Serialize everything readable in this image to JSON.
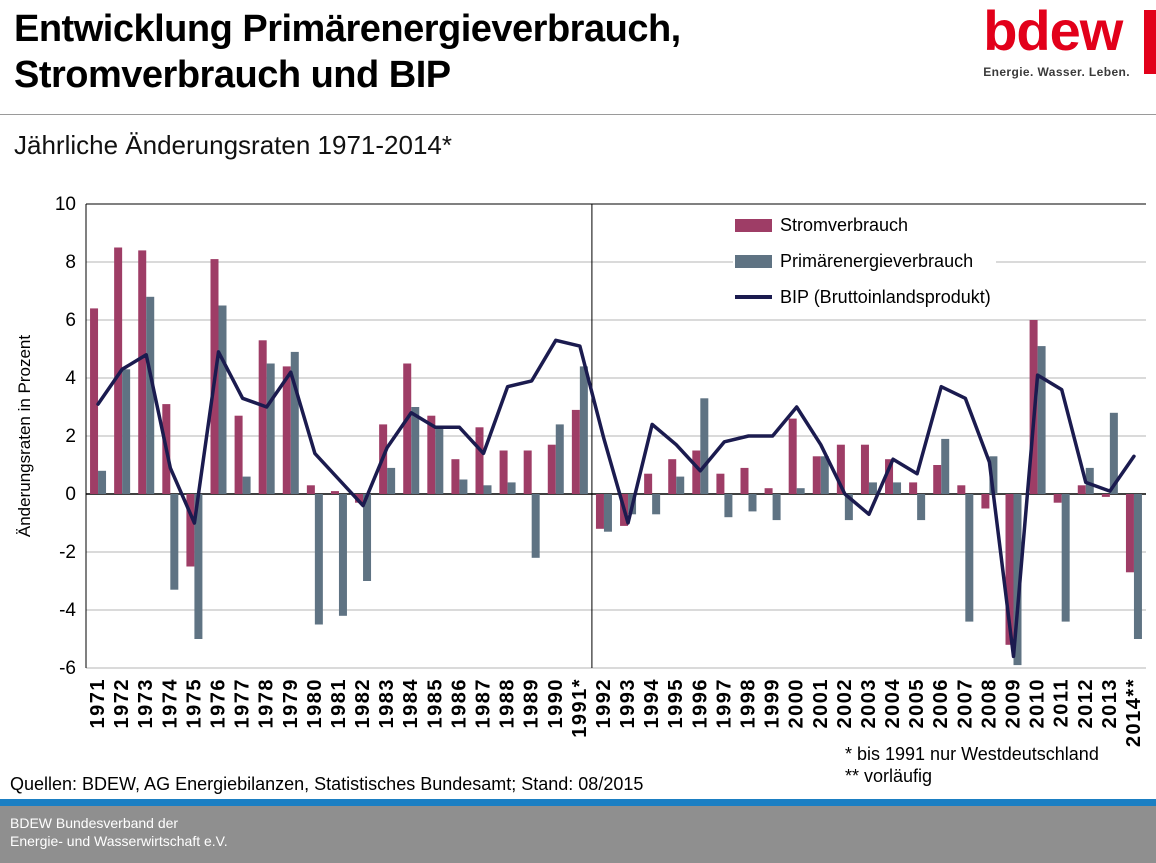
{
  "header": {
    "title": "Entwicklung Primärenergieverbrauch,\nStromverbrauch und BIP",
    "logo": {
      "wordmark": "bdew",
      "tagline": "Energie. Wasser. Leben."
    }
  },
  "chart_data": {
    "type": "bar",
    "title": "Jährliche Änderungsraten 1971-2014*",
    "ylabel": "Änderungsraten in Prozent",
    "xlabel": "",
    "ylim": [
      -6,
      10
    ],
    "ytick_step": 2,
    "grid": true,
    "legend_position": "top-right-inside",
    "separator_after_category": "1991*",
    "categories": [
      "1971",
      "1972",
      "1973",
      "1974",
      "1975",
      "1976",
      "1977",
      "1978",
      "1979",
      "1980",
      "1981",
      "1982",
      "1983",
      "1984",
      "1985",
      "1986",
      "1987",
      "1988",
      "1989",
      "1990",
      "1991*",
      "1992",
      "1993",
      "1994",
      "1995",
      "1996",
      "1997",
      "1998",
      "1999",
      "2000",
      "2001",
      "2002",
      "2003",
      "2004",
      "2005",
      "2006",
      "2007",
      "2008",
      "2009",
      "2010",
      "2011",
      "2012",
      "2013",
      "2014**"
    ],
    "series": [
      {
        "name": "Stromverbrauch",
        "type": "bar",
        "color": "#9e3d66",
        "values": [
          6.4,
          8.5,
          8.4,
          3.1,
          -2.5,
          8.1,
          2.7,
          5.3,
          4.4,
          0.3,
          0.1,
          -0.3,
          2.4,
          4.5,
          2.7,
          1.2,
          2.3,
          1.5,
          1.5,
          1.7,
          2.9,
          -1.2,
          -1.1,
          0.7,
          1.2,
          1.5,
          0.7,
          0.9,
          0.2,
          2.6,
          1.3,
          1.7,
          1.7,
          1.2,
          0.4,
          1.0,
          0.3,
          -0.5,
          -5.2,
          6.0,
          -0.3,
          0.3,
          -0.1,
          -2.7
        ]
      },
      {
        "name": "Primärenergieverbrauch",
        "type": "bar",
        "color": "#5f7383",
        "values": [
          0.8,
          4.3,
          6.8,
          -3.3,
          -5.0,
          6.5,
          0.6,
          4.5,
          4.9,
          -4.5,
          -4.2,
          -3.0,
          0.9,
          3.0,
          2.3,
          0.5,
          0.3,
          0.4,
          -2.2,
          2.4,
          4.4,
          -1.3,
          -0.7,
          -0.7,
          0.6,
          3.3,
          -0.8,
          -0.6,
          -0.9,
          0.2,
          1.3,
          -0.9,
          0.4,
          0.4,
          -0.9,
          1.9,
          -4.4,
          1.3,
          -5.9,
          5.1,
          -4.4,
          0.9,
          2.8,
          -5.0
        ]
      },
      {
        "name": "BIP (Bruttoinlandsprodukt)",
        "type": "line",
        "color": "#1b1b4f",
        "values": [
          3.1,
          4.3,
          4.8,
          0.9,
          -1.0,
          4.9,
          3.3,
          3.0,
          4.2,
          1.4,
          0.5,
          -0.4,
          1.6,
          2.8,
          2.3,
          2.3,
          1.4,
          3.7,
          3.9,
          5.3,
          5.1,
          1.9,
          -1.0,
          2.4,
          1.7,
          0.8,
          1.8,
          2.0,
          2.0,
          3.0,
          1.7,
          0.0,
          -0.7,
          1.2,
          0.7,
          3.7,
          3.3,
          1.1,
          -5.6,
          4.1,
          3.6,
          0.4,
          0.1,
          1.3
        ]
      }
    ]
  },
  "footer": {
    "source": "Quellen: BDEW, AG Energiebilanzen, Statistisches Bundesamt; Stand: 08/2015",
    "notes": "* bis 1991 nur Westdeutschland\n** vorläufig",
    "organization": "BDEW Bundesverband der\nEnergie- und Wasserwirtschaft e.V."
  },
  "colors": {
    "logo_red": "#e2001a",
    "accent_blue": "#1b7fc3",
    "footer_gray": "#8f8f8f",
    "gridline_gray": "#b5b5b5"
  }
}
